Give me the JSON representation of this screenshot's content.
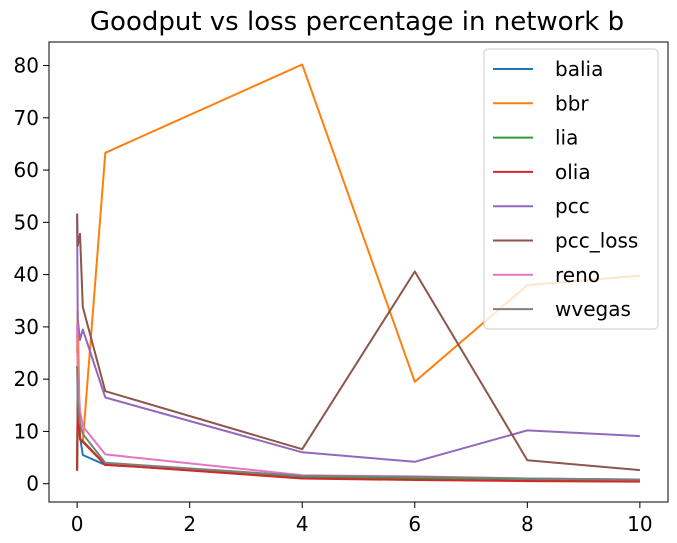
{
  "chart_data": {
    "type": "line",
    "title": "Goodput vs loss percentage in network b",
    "xlabel": "",
    "ylabel": "",
    "xlim": [
      -0.5,
      10.5
    ],
    "ylim": [
      -3.5,
      84.5
    ],
    "xticks": [
      0,
      2,
      4,
      6,
      8,
      10
    ],
    "yticks": [
      0,
      10,
      20,
      30,
      40,
      50,
      60,
      70,
      80
    ],
    "grid": false,
    "legend_position": "top-right",
    "series": [
      {
        "name": "balia",
        "color": "#1f77b4",
        "x": [
          0,
          0.01,
          0.05,
          0.1,
          0.5,
          1,
          4,
          6,
          8,
          10
        ],
        "y": [
          2.5,
          18,
          9,
          5.5,
          3.6,
          3.3,
          1.2,
          1.0,
          0.7,
          0.6
        ]
      },
      {
        "name": "bbr",
        "color": "#ff7f0e",
        "x": [
          0,
          0.01,
          0.05,
          0.1,
          0.5,
          4,
          6,
          8,
          10
        ],
        "y": [
          25,
          33,
          8.5,
          8.0,
          63.3,
          80.2,
          19.5,
          38.0,
          39.8
        ]
      },
      {
        "name": "lia",
        "color": "#2ca02c",
        "x": [
          0,
          0.01,
          0.05,
          0.1,
          0.5,
          1,
          4,
          6,
          8,
          10
        ],
        "y": [
          2.5,
          17,
          8.5,
          8.2,
          3.7,
          3.4,
          1.1,
          0.9,
          0.6,
          0.5
        ]
      },
      {
        "name": "olia",
        "color": "#d62728",
        "x": [
          0,
          0.01,
          0.05,
          0.1,
          0.5,
          1,
          4,
          6,
          8,
          10
        ],
        "y": [
          2.5,
          16,
          8.5,
          8.0,
          3.6,
          3.3,
          1.0,
          0.7,
          0.5,
          0.4
        ]
      },
      {
        "name": "pcc",
        "color": "#9467bd",
        "x": [
          0,
          0.01,
          0.05,
          0.1,
          0.5,
          4,
          6,
          8,
          10
        ],
        "y": [
          51.5,
          31.5,
          27.5,
          29.5,
          16.5,
          6.0,
          4.2,
          10.2,
          9.1
        ]
      },
      {
        "name": "pcc_loss",
        "color": "#8c564b",
        "x": [
          0,
          0.01,
          0.05,
          0.1,
          0.5,
          4,
          6,
          8,
          10
        ],
        "y": [
          51.7,
          45.5,
          47.8,
          33.8,
          17.7,
          6.6,
          40.6,
          4.5,
          2.6
        ]
      },
      {
        "name": "reno",
        "color": "#e377c2",
        "x": [
          0,
          0.01,
          0.05,
          0.1,
          0.5,
          4,
          6,
          8,
          10
        ],
        "y": [
          30.5,
          20.5,
          14.0,
          11.0,
          5.6,
          1.6,
          1.4,
          1.0,
          0.8
        ]
      },
      {
        "name": "wvegas",
        "color": "#7f7f7f",
        "x": [
          0,
          0.01,
          0.05,
          0.1,
          0.5,
          4,
          6,
          8,
          10
        ],
        "y": [
          22.5,
          16.0,
          11.5,
          9.5,
          4.0,
          1.5,
          1.3,
          1.0,
          0.8
        ]
      }
    ]
  }
}
